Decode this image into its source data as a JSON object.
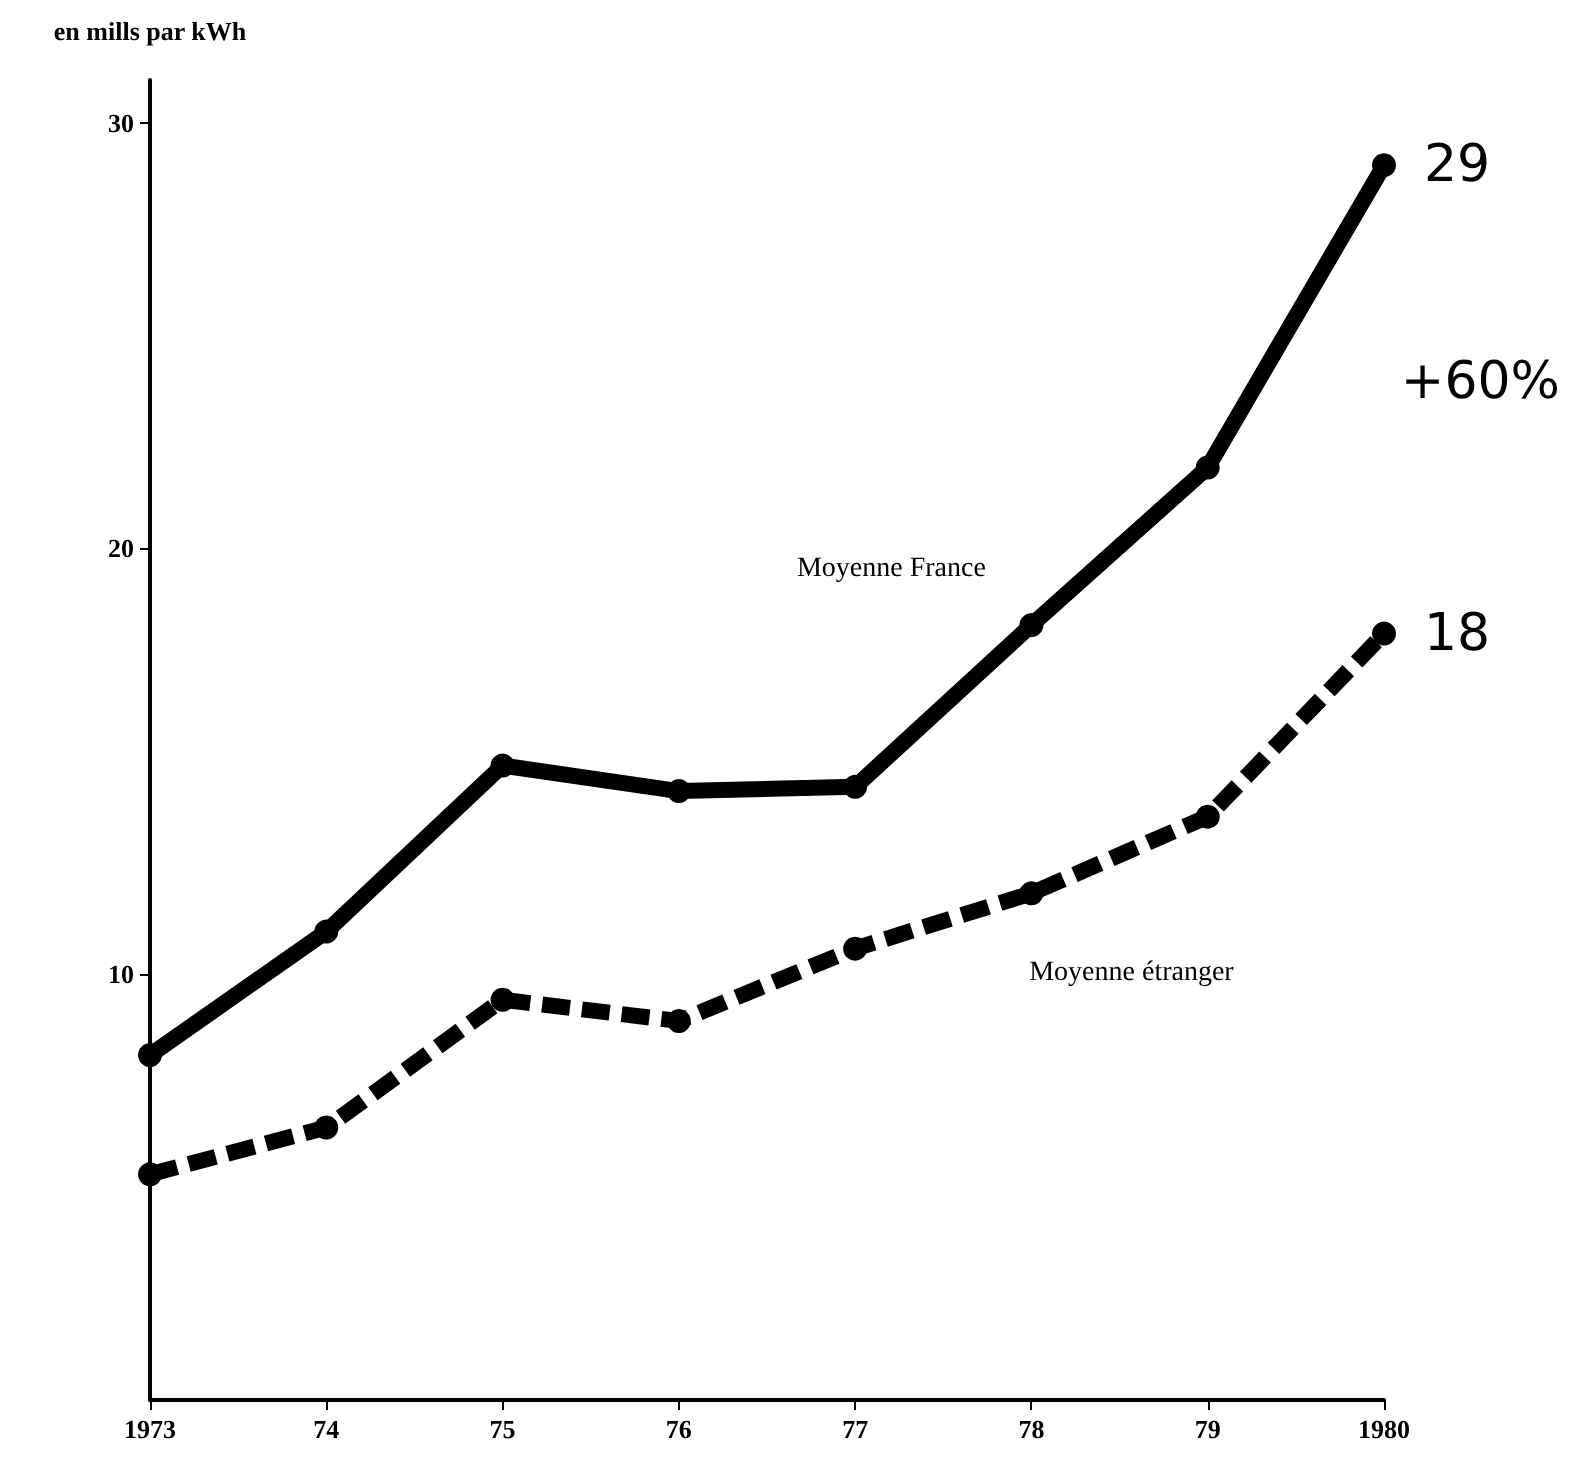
{
  "chart_data": {
    "type": "line",
    "ylabel": "en mills par kWh",
    "categories": [
      "1973",
      "74",
      "75",
      "76",
      "77",
      "78",
      "79",
      "1980"
    ],
    "series": [
      {
        "name": "Moyenne France",
        "color": "#000000",
        "line_style": "solid",
        "values": [
          8.1,
          11.0,
          14.9,
          14.3,
          14.4,
          18.2,
          21.9,
          29
        ],
        "value_labels": [
          null,
          null,
          null,
          null,
          null,
          null,
          null,
          "29"
        ]
      },
      {
        "name": "Moyenne étranger",
        "color": "#000000",
        "line_style": "dashed",
        "values": [
          5.3,
          6.4,
          9.4,
          8.9,
          10.6,
          11.9,
          13.7,
          18
        ],
        "value_labels": [
          null,
          null,
          null,
          null,
          null,
          null,
          null,
          "18"
        ]
      }
    ],
    "annotations": [
      "+60%"
    ],
    "ylim": [
      0,
      31
    ],
    "yticks": [
      10,
      20,
      30
    ],
    "grid": false,
    "legend": false,
    "marker": "circle"
  }
}
